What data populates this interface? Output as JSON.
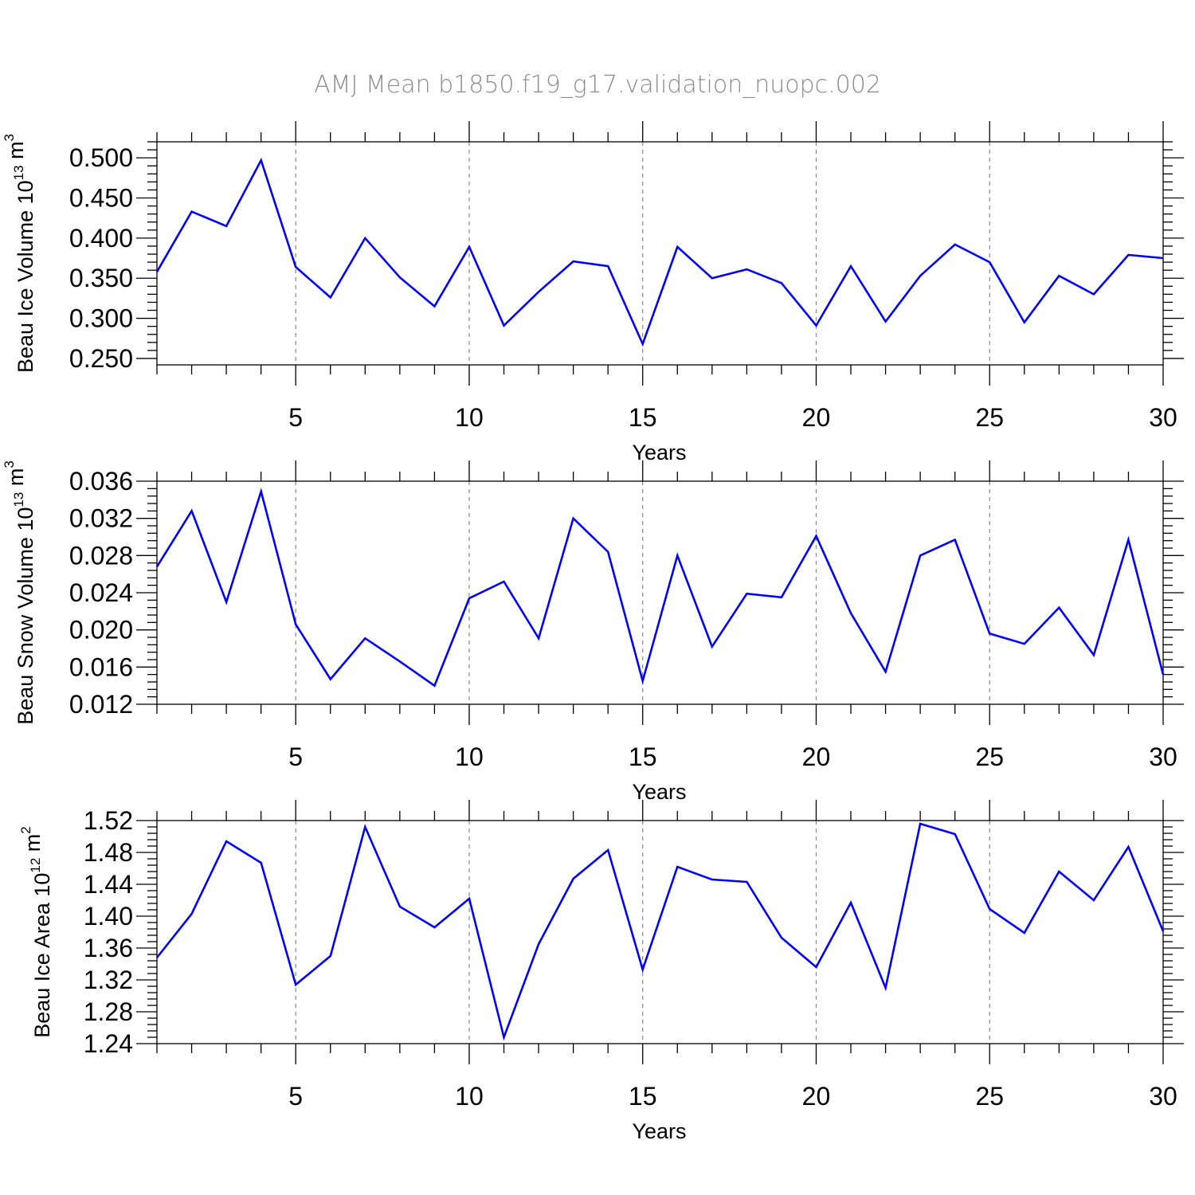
{
  "figure_title": "AMJ Mean b1850.f19_g17.validation_nuopc.002",
  "colors": {
    "line": "#0000ff",
    "axis": "#000000",
    "grid": "#888888",
    "title": "#8c8c8c"
  },
  "chart_data": [
    {
      "type": "line",
      "title": "",
      "xlabel": "Years",
      "ylabel": "Beau Ice Volume 10",
      "ylabel_exp": "13",
      "ylabel_unit": " m",
      "ylabel_unit_exp": "3",
      "xlim": [
        1,
        30
      ],
      "ylim": [
        0.242,
        0.52
      ],
      "xticks": [
        5,
        10,
        15,
        20,
        25,
        30
      ],
      "xtick_labels": [
        "5",
        "10",
        "15",
        "20",
        "25",
        "30"
      ],
      "yticks": [
        0.25,
        0.3,
        0.35,
        0.4,
        0.45,
        0.5
      ],
      "ytick_labels": [
        "0.250",
        "0.300",
        "0.350",
        "0.400",
        "0.450",
        "0.500"
      ],
      "grid": "vertical dashed at major x ticks",
      "series": [
        {
          "name": "Beau Ice Volume",
          "x": [
            1,
            2,
            3,
            4,
            5,
            6,
            7,
            8,
            9,
            10,
            11,
            12,
            13,
            14,
            15,
            16,
            17,
            18,
            19,
            20,
            21,
            22,
            23,
            24,
            25,
            26,
            27,
            28,
            29,
            30
          ],
          "values": [
            0.358,
            0.433,
            0.415,
            0.497,
            0.364,
            0.326,
            0.4,
            0.351,
            0.315,
            0.389,
            0.291,
            0.333,
            0.371,
            0.365,
            0.268,
            0.389,
            0.35,
            0.361,
            0.344,
            0.291,
            0.365,
            0.296,
            0.353,
            0.392,
            0.37,
            0.295,
            0.353,
            0.33,
            0.379,
            0.375
          ]
        }
      ]
    },
    {
      "type": "line",
      "title": "",
      "xlabel": "Years",
      "ylabel": "Beau Snow Volume 10",
      "ylabel_exp": "13",
      "ylabel_unit": " m",
      "ylabel_unit_exp": "3",
      "xlim": [
        1,
        30
      ],
      "ylim": [
        0.012,
        0.036
      ],
      "xticks": [
        5,
        10,
        15,
        20,
        25,
        30
      ],
      "xtick_labels": [
        "5",
        "10",
        "15",
        "20",
        "25",
        "30"
      ],
      "yticks": [
        0.012,
        0.016,
        0.02,
        0.024,
        0.028,
        0.032,
        0.036
      ],
      "ytick_labels": [
        "0.012",
        "0.016",
        "0.020",
        "0.024",
        "0.028",
        "0.032",
        "0.036"
      ],
      "grid": "vertical dashed at major x ticks",
      "series": [
        {
          "name": "Beau Snow Volume",
          "x": [
            1,
            2,
            3,
            4,
            5,
            6,
            7,
            8,
            9,
            10,
            11,
            12,
            13,
            14,
            15,
            16,
            17,
            18,
            19,
            20,
            21,
            22,
            23,
            24,
            25,
            26,
            27,
            28,
            29,
            30
          ],
          "values": [
            0.0268,
            0.0328,
            0.023,
            0.0349,
            0.0206,
            0.0147,
            0.0191,
            0.0166,
            0.014,
            0.0234,
            0.0252,
            0.0191,
            0.032,
            0.0284,
            0.0145,
            0.028,
            0.0182,
            0.0239,
            0.0235,
            0.0301,
            0.0218,
            0.0155,
            0.028,
            0.0297,
            0.0196,
            0.0185,
            0.0224,
            0.0173,
            0.0297,
            0.0152
          ]
        }
      ]
    },
    {
      "type": "line",
      "title": "",
      "xlabel": "Years",
      "ylabel": "Beau Ice Area 10",
      "ylabel_exp": "12",
      "ylabel_unit": " m",
      "ylabel_unit_exp": "2",
      "xlim": [
        1,
        30
      ],
      "ylim": [
        1.24,
        1.52
      ],
      "xticks": [
        5,
        10,
        15,
        20,
        25,
        30
      ],
      "xtick_labels": [
        "5",
        "10",
        "15",
        "20",
        "25",
        "30"
      ],
      "yticks": [
        1.24,
        1.28,
        1.32,
        1.36,
        1.4,
        1.44,
        1.48,
        1.52
      ],
      "ytick_labels": [
        "1.24",
        "1.28",
        "1.32",
        "1.36",
        "1.40",
        "1.44",
        "1.48",
        "1.52"
      ],
      "grid": "vertical dashed at major x ticks",
      "series": [
        {
          "name": "Beau Ice Area",
          "x": [
            1,
            2,
            3,
            4,
            5,
            6,
            7,
            8,
            9,
            10,
            11,
            12,
            13,
            14,
            15,
            16,
            17,
            18,
            19,
            20,
            21,
            22,
            23,
            24,
            25,
            26,
            27,
            28,
            29,
            30
          ],
          "values": [
            1.348,
            1.403,
            1.494,
            1.467,
            1.314,
            1.35,
            1.512,
            1.412,
            1.386,
            1.422,
            1.248,
            1.365,
            1.447,
            1.483,
            1.333,
            1.462,
            1.446,
            1.443,
            1.373,
            1.336,
            1.417,
            1.31,
            1.516,
            1.503,
            1.409,
            1.379,
            1.456,
            1.42,
            1.487,
            1.381
          ]
        }
      ]
    }
  ]
}
